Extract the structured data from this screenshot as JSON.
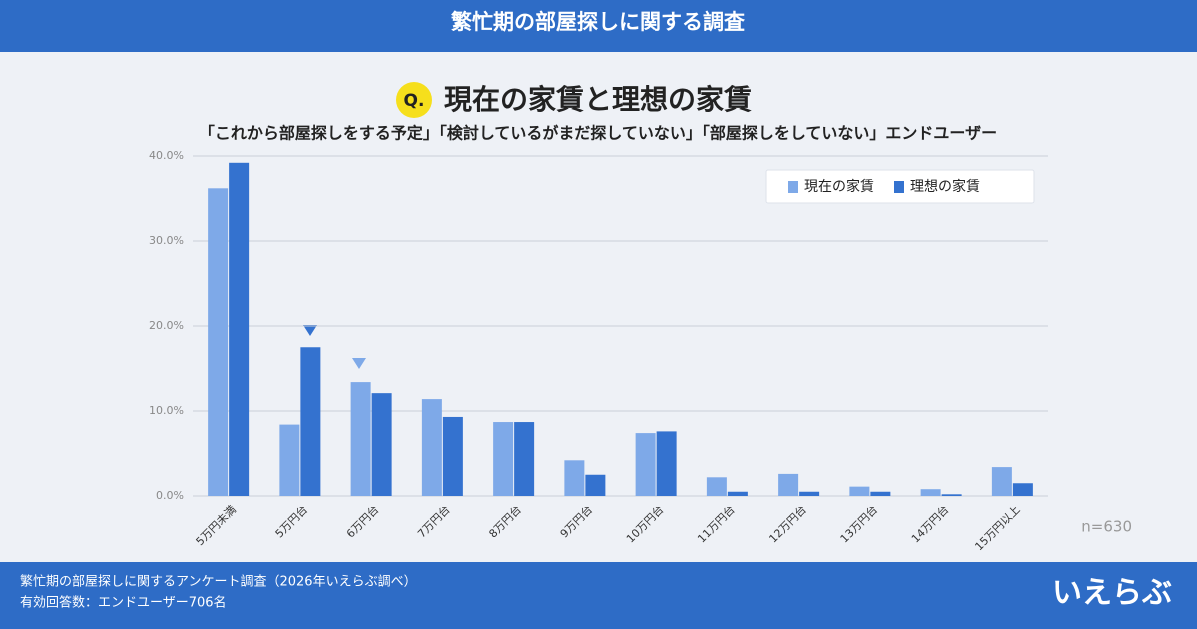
{
  "header": {
    "title": "繁忙期の部屋探しに関する調査"
  },
  "chart_data": {
    "type": "bar",
    "q_label": "Q.",
    "title": "現在の家賃と理想の家賃",
    "subtitle": "「これから部屋探しをする予定」「検討しているがまだ探していない」「部屋探しをしていない」エンドユーザー",
    "categories": [
      "5万円未満",
      "5万円台",
      "6万円台",
      "7万円台",
      "8万円台",
      "9万円台",
      "10万円台",
      "11万円台",
      "12万円台",
      "13万円台",
      "14万円台",
      "15万円以上"
    ],
    "series": [
      {
        "name": "現在の家賃",
        "color": "#7ea9e8",
        "values": [
          36.2,
          8.4,
          13.4,
          11.4,
          8.7,
          4.2,
          7.4,
          2.2,
          2.6,
          1.1,
          0.8,
          3.4
        ]
      },
      {
        "name": "理想の家賃",
        "color": "#3472cf",
        "values": [
          39.2,
          17.5,
          12.1,
          9.3,
          8.7,
          2.5,
          7.6,
          0.5,
          0.5,
          0.5,
          0.2,
          1.5
        ]
      }
    ],
    "ylim": [
      0,
      40
    ],
    "yticks": [
      {
        "value": 0,
        "label": "0.0%"
      },
      {
        "value": 10,
        "label": "10.0%"
      },
      {
        "value": 20,
        "label": "20.0%"
      },
      {
        "value": 30,
        "label": "30.0%"
      },
      {
        "value": 40,
        "label": "40.0%"
      }
    ],
    "grid": true,
    "legend": "top-right",
    "note": "n=630"
  },
  "footer": {
    "lines": [
      "繁忙期の部屋探しに関するアンケート調査（2026年いえらぶ調べ）",
      "有効回答数：エンドユーザー706名"
    ],
    "logo": "いえらぶ"
  }
}
